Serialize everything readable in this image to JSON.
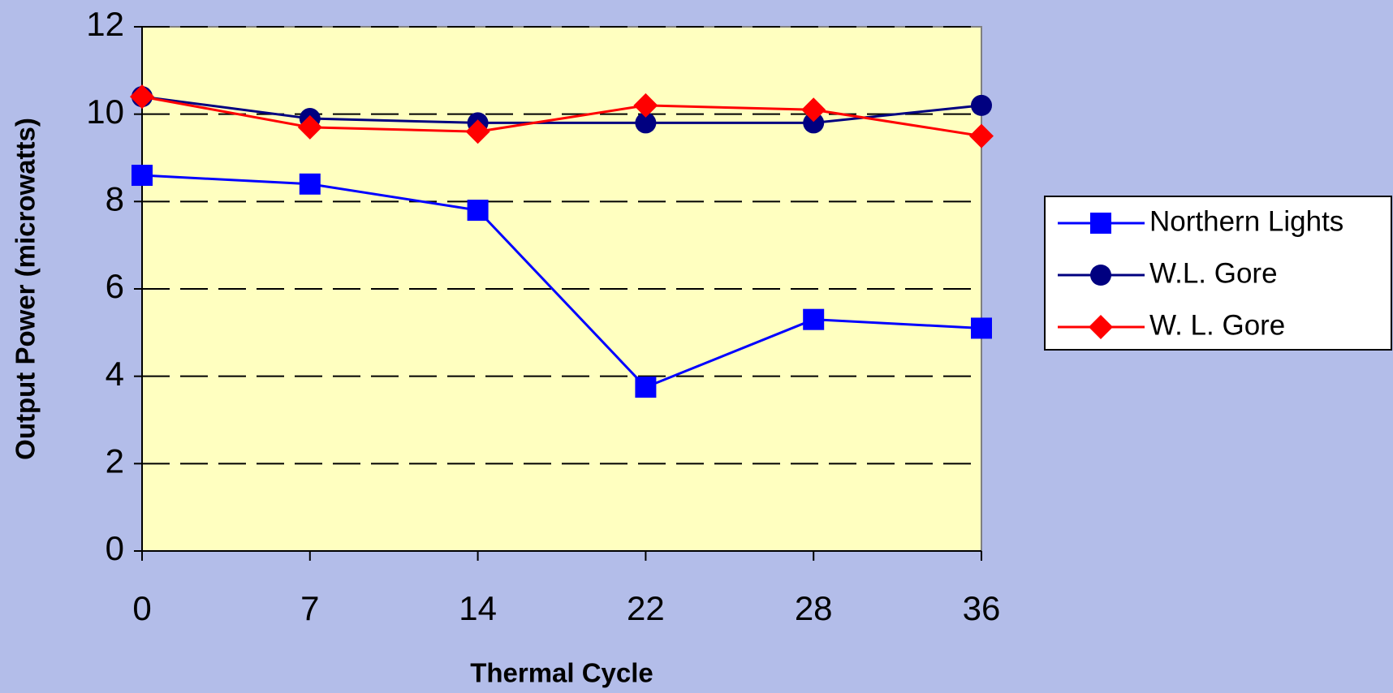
{
  "chart_data": {
    "type": "line",
    "x_label": "Thermal Cycle",
    "y_label": "Output Power (microwatts)",
    "categories": [
      "0",
      "7",
      "14",
      "22",
      "28",
      "36"
    ],
    "series": [
      {
        "name": "Northern Lights",
        "color": "#0000ff",
        "marker": "square",
        "values": [
          8.6,
          8.4,
          7.8,
          3.75,
          5.3,
          5.1
        ]
      },
      {
        "name": "W.L. Gore",
        "color": "#000080",
        "marker": "circle",
        "values": [
          10.4,
          9.9,
          9.8,
          9.8,
          9.8,
          10.2
        ]
      },
      {
        "name": "W. L. Gore",
        "color": "#ff0000",
        "marker": "diamond",
        "values": [
          10.4,
          9.7,
          9.6,
          10.2,
          10.1,
          9.5
        ]
      }
    ],
    "ylim": [
      0,
      12
    ],
    "yticks": [
      0,
      2,
      4,
      6,
      8,
      10,
      12
    ],
    "grid": true,
    "legend": "right"
  }
}
